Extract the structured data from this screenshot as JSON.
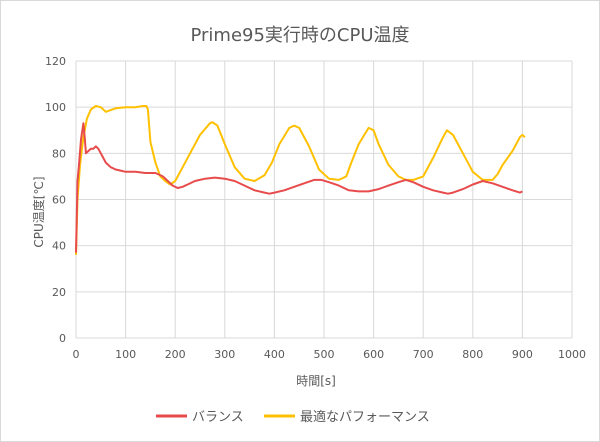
{
  "chart_data": {
    "type": "line",
    "title": "Prime95実行時のCPU温度",
    "xlabel": "時間[s]",
    "ylabel": "CPU温度[℃]",
    "xlim": [
      0,
      1000
    ],
    "ylim": [
      0,
      120
    ],
    "x_ticks": [
      0,
      100,
      200,
      300,
      400,
      500,
      600,
      700,
      800,
      900,
      1000
    ],
    "y_ticks": [
      0,
      20,
      40,
      60,
      80,
      100,
      120
    ],
    "grid": "vertical and horizontal",
    "legend_position": "bottom",
    "series": [
      {
        "name": "バランス",
        "color": "#e84b4b",
        "x": [
          0,
          3,
          6,
          10,
          15,
          18,
          20,
          25,
          30,
          35,
          40,
          45,
          50,
          60,
          70,
          80,
          90,
          100,
          120,
          140,
          160,
          175,
          185,
          195,
          205,
          215,
          225,
          240,
          260,
          280,
          300,
          320,
          340,
          360,
          380,
          390,
          400,
          420,
          440,
          460,
          480,
          495,
          510,
          530,
          550,
          570,
          590,
          610,
          630,
          650,
          665,
          680,
          700,
          720,
          740,
          750,
          760,
          780,
          800,
          820,
          840,
          860,
          880,
          895,
          900
        ],
        "y": [
          37,
          68,
          75,
          86,
          93,
          86,
          80,
          81,
          82,
          82,
          83,
          82,
          80,
          76,
          74,
          73,
          72.5,
          72,
          72,
          71.5,
          71.5,
          70,
          68,
          66,
          65,
          65.5,
          66.5,
          68,
          69,
          69.5,
          69,
          68,
          66,
          64,
          63,
          62.5,
          63,
          64,
          65.5,
          67,
          68.5,
          68.5,
          67.5,
          66,
          64,
          63.5,
          63.5,
          64.5,
          66,
          67.5,
          68.5,
          67.5,
          65.5,
          64,
          63,
          62.5,
          63,
          64.5,
          66.5,
          68,
          67,
          65.5,
          64,
          63,
          63.5
        ]
      },
      {
        "name": "最適なパフォーマンス",
        "color": "#ffc000",
        "x": [
          0,
          3,
          8,
          15,
          22,
          30,
          40,
          50,
          60,
          80,
          100,
          120,
          135,
          142,
          145,
          150,
          160,
          170,
          180,
          190,
          200,
          210,
          230,
          250,
          270,
          275,
          285,
          300,
          320,
          340,
          360,
          380,
          395,
          410,
          430,
          440,
          450,
          470,
          490,
          510,
          530,
          545,
          555,
          570,
          590,
          600,
          610,
          630,
          650,
          665,
          680,
          700,
          720,
          740,
          748,
          760,
          780,
          800,
          820,
          840,
          850,
          860,
          880,
          895,
          900,
          905
        ],
        "y": [
          36,
          60,
          75,
          87,
          95,
          99,
          100.5,
          100,
          98,
          99.5,
          100,
          100,
          100.5,
          100.5,
          99,
          85,
          76,
          70,
          68,
          66.5,
          68,
          72,
          80,
          88,
          93,
          93.5,
          92,
          84,
          74,
          69,
          68,
          70.5,
          76,
          84,
          91,
          92,
          91,
          83,
          73,
          69,
          68.5,
          70,
          76,
          84,
          91,
          90,
          84,
          75,
          70,
          68.5,
          68.5,
          70,
          78,
          87,
          90,
          88,
          80,
          72,
          68.5,
          68.5,
          71,
          75,
          81,
          87,
          88,
          87
        ]
      }
    ]
  }
}
